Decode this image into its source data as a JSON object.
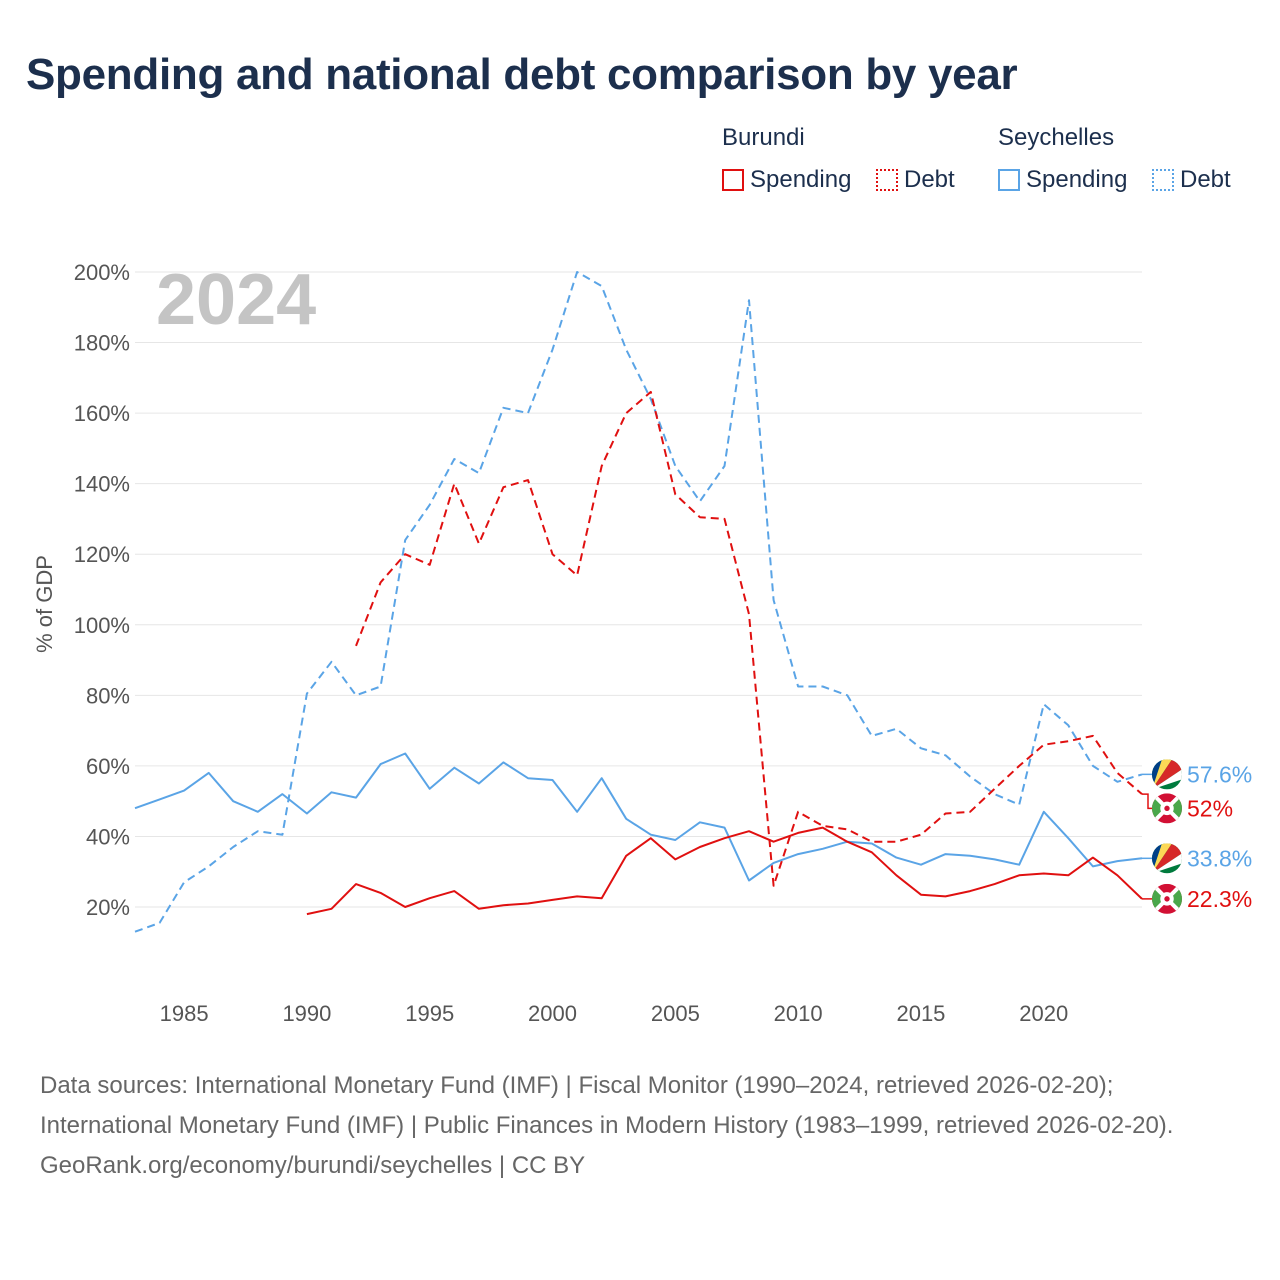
{
  "title": "Spending and national debt comparison by year",
  "legend": {
    "burundi": {
      "name": "Burundi",
      "spending": "Spending",
      "debt": "Debt"
    },
    "seychelles": {
      "name": "Seychelles",
      "spending": "Spending",
      "debt": "Debt"
    }
  },
  "footer": {
    "sources": "Data sources: International Monetary Fund (IMF) | Fiscal Monitor (1990–2024, retrieved 2026-02-20); International Monetary Fund (IMF) | Public Finances in Modern History (1983–1999, retrieved 2026-02-20).",
    "link": "GeoRank.org/economy/burundi/seychelles | CC BY"
  },
  "colors": {
    "burundi": "#e01010",
    "seychelles": "#5aa4e6"
  },
  "chart_data": {
    "type": "line",
    "current_year": "2024",
    "ylabel": "% of GDP",
    "ylim": [
      0,
      200
    ],
    "xlim": [
      1983,
      2024
    ],
    "yticks": [
      20,
      40,
      60,
      80,
      100,
      120,
      140,
      160,
      180,
      200
    ],
    "ytick_labels": [
      "20%",
      "40%",
      "60%",
      "80%",
      "100%",
      "120%",
      "140%",
      "160%",
      "180%",
      "200%"
    ],
    "xticks": [
      1985,
      1990,
      1995,
      2000,
      2005,
      2010,
      2015,
      2020
    ],
    "xtick_labels": [
      "1985",
      "1990",
      "1995",
      "2000",
      "2005",
      "2010",
      "2015",
      "2020"
    ],
    "series": [
      {
        "name": "Seychelles Debt",
        "country": "Seychelles",
        "metric": "Debt",
        "style": "dashed",
        "color": "#5aa4e6",
        "end_label": "57.6%",
        "points": [
          [
            1983,
            13
          ],
          [
            1984,
            15.5
          ],
          [
            1985,
            27
          ],
          [
            1986,
            31.5
          ],
          [
            1987,
            37
          ],
          [
            1988,
            41.5
          ],
          [
            1989,
            40.5
          ],
          [
            1990,
            80.5
          ],
          [
            1991,
            89.5
          ],
          [
            1992,
            80
          ],
          [
            1993,
            82.5
          ],
          [
            1994,
            124
          ],
          [
            1995,
            134
          ],
          [
            1996,
            147
          ],
          [
            1997,
            143
          ],
          [
            1998,
            161.5
          ],
          [
            1999,
            160
          ],
          [
            2000,
            178
          ],
          [
            2001,
            200
          ],
          [
            2002,
            196
          ],
          [
            2003,
            178
          ],
          [
            2004,
            164
          ],
          [
            2005,
            145
          ],
          [
            2006,
            135
          ],
          [
            2007,
            145
          ],
          [
            2008,
            192
          ],
          [
            2009,
            107
          ],
          [
            2010,
            82.5
          ],
          [
            2011,
            82.5
          ],
          [
            2012,
            80
          ],
          [
            2013,
            68.5
          ],
          [
            2014,
            70.5
          ],
          [
            2015,
            65
          ],
          [
            2016,
            63
          ],
          [
            2017,
            57
          ],
          [
            2018,
            52
          ],
          [
            2019,
            49
          ],
          [
            2020,
            77.5
          ],
          [
            2021,
            71.5
          ],
          [
            2022,
            60
          ],
          [
            2023,
            55.5
          ],
          [
            2024,
            57.6
          ]
        ]
      },
      {
        "name": "Burundi Debt",
        "country": "Burundi",
        "metric": "Debt",
        "style": "dashed",
        "color": "#e01010",
        "end_label": "52%",
        "points": [
          [
            1992,
            94
          ],
          [
            1993,
            112
          ],
          [
            1994,
            120
          ],
          [
            1995,
            117
          ],
          [
            1996,
            140
          ],
          [
            1997,
            123
          ],
          [
            1998,
            139
          ],
          [
            1999,
            141
          ],
          [
            2000,
            120
          ],
          [
            2001,
            114
          ],
          [
            2002,
            145
          ],
          [
            2003,
            160
          ],
          [
            2004,
            166
          ],
          [
            2005,
            137
          ],
          [
            2006,
            130.5
          ],
          [
            2007,
            130
          ],
          [
            2008,
            103
          ],
          [
            2009,
            26
          ],
          [
            2010,
            47
          ],
          [
            2011,
            43
          ],
          [
            2012,
            42
          ],
          [
            2013,
            38.5
          ],
          [
            2014,
            38.5
          ],
          [
            2015,
            40.5
          ],
          [
            2016,
            46.5
          ],
          [
            2017,
            47
          ],
          [
            2018,
            53.5
          ],
          [
            2019,
            60
          ],
          [
            2020,
            66
          ],
          [
            2021,
            67
          ],
          [
            2022,
            68.5
          ],
          [
            2023,
            58
          ],
          [
            2024,
            52
          ]
        ]
      },
      {
        "name": "Seychelles Spending",
        "country": "Seychelles",
        "metric": "Spending",
        "style": "solid",
        "color": "#5aa4e6",
        "end_label": "33.8%",
        "points": [
          [
            1983,
            48
          ],
          [
            1984,
            50.5
          ],
          [
            1985,
            53
          ],
          [
            1986,
            58
          ],
          [
            1987,
            50
          ],
          [
            1988,
            47
          ],
          [
            1989,
            52
          ],
          [
            1990,
            46.5
          ],
          [
            1991,
            52.5
          ],
          [
            1992,
            51
          ],
          [
            1993,
            60.5
          ],
          [
            1994,
            63.5
          ],
          [
            1995,
            53.5
          ],
          [
            1996,
            59.5
          ],
          [
            1997,
            55
          ],
          [
            1998,
            61
          ],
          [
            1999,
            56.5
          ],
          [
            2000,
            56
          ],
          [
            2001,
            47
          ],
          [
            2002,
            56.5
          ],
          [
            2003,
            45
          ],
          [
            2004,
            40.5
          ],
          [
            2005,
            39
          ],
          [
            2006,
            44
          ],
          [
            2007,
            42.5
          ],
          [
            2008,
            27.5
          ],
          [
            2009,
            32.5
          ],
          [
            2010,
            35
          ],
          [
            2011,
            36.5
          ],
          [
            2012,
            38.5
          ],
          [
            2013,
            38
          ],
          [
            2014,
            34
          ],
          [
            2015,
            32
          ],
          [
            2016,
            35
          ],
          [
            2017,
            34.5
          ],
          [
            2018,
            33.5
          ],
          [
            2019,
            32
          ],
          [
            2020,
            47
          ],
          [
            2021,
            39.5
          ],
          [
            2022,
            31.5
          ],
          [
            2023,
            33
          ],
          [
            2024,
            33.8
          ]
        ]
      },
      {
        "name": "Burundi Spending",
        "country": "Burundi",
        "metric": "Spending",
        "style": "solid",
        "color": "#e01010",
        "end_label": "22.3%",
        "points": [
          [
            1990,
            18
          ],
          [
            1991,
            19.5
          ],
          [
            1992,
            26.5
          ],
          [
            1993,
            24
          ],
          [
            1994,
            20
          ],
          [
            1995,
            22.5
          ],
          [
            1996,
            24.5
          ],
          [
            1997,
            19.5
          ],
          [
            1998,
            20.5
          ],
          [
            1999,
            21
          ],
          [
            2000,
            22
          ],
          [
            2001,
            23
          ],
          [
            2002,
            22.5
          ],
          [
            2003,
            34.5
          ],
          [
            2004,
            39.5
          ],
          [
            2005,
            33.5
          ],
          [
            2006,
            37
          ],
          [
            2007,
            39.5
          ],
          [
            2008,
            41.5
          ],
          [
            2009,
            38.5
          ],
          [
            2010,
            41
          ],
          [
            2011,
            42.5
          ],
          [
            2012,
            38.5
          ],
          [
            2013,
            35.5
          ],
          [
            2014,
            29
          ],
          [
            2015,
            23.5
          ],
          [
            2016,
            23
          ],
          [
            2017,
            24.5
          ],
          [
            2018,
            26.5
          ],
          [
            2019,
            29
          ],
          [
            2020,
            29.5
          ],
          [
            2021,
            29
          ],
          [
            2022,
            34
          ],
          [
            2023,
            29
          ],
          [
            2024,
            22.3
          ]
        ]
      }
    ]
  }
}
